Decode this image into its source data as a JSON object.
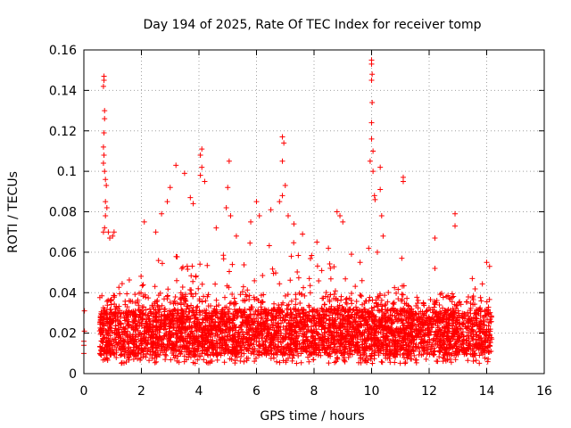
{
  "chart_data": {
    "type": "scatter",
    "title": "Day 194 of 2025, Rate Of TEC Index for receiver tomp",
    "xlabel": "GPS time / hours",
    "ylabel": "ROTI / TECUs",
    "xlim": [
      0,
      16
    ],
    "ylim": [
      0,
      0.16
    ],
    "x_ticks": [
      "0",
      "2",
      "4",
      "6",
      "8",
      "10",
      "12",
      "14",
      "16"
    ],
    "y_ticks": [
      "0",
      "0.02",
      "0.04",
      "0.06",
      "0.08",
      "0.1",
      "0.12",
      "0.14",
      "0.16"
    ],
    "grid": true,
    "marker": "+",
    "marker_color": "#ff0000",
    "series": [
      {
        "name": "ROTI",
        "approximate_band": {
          "x_range": [
            0.55,
            14.2
          ],
          "typical_range": [
            0.005,
            0.04
          ],
          "upper_envelope": [
            [
              0.7,
              0.045
            ],
            [
              2,
              0.05
            ],
            [
              3,
              0.06
            ],
            [
              4,
              0.06
            ],
            [
              5,
              0.065
            ],
            [
              6,
              0.065
            ],
            [
              7,
              0.07
            ],
            [
              8,
              0.06
            ],
            [
              9,
              0.05
            ],
            [
              10,
              0.045
            ],
            [
              11,
              0.045
            ],
            [
              12,
              0.04
            ],
            [
              13,
              0.04
            ],
            [
              14,
              0.05
            ]
          ]
        },
        "points": [
          [
            0.0,
            0.014
          ],
          [
            0.0,
            0.016
          ],
          [
            0.0,
            0.01
          ],
          [
            0.02,
            0.021
          ],
          [
            0.02,
            0.031
          ],
          [
            0.7,
            0.147
          ],
          [
            0.7,
            0.145
          ],
          [
            0.68,
            0.142
          ],
          [
            0.72,
            0.13
          ],
          [
            0.72,
            0.126
          ],
          [
            0.7,
            0.119
          ],
          [
            0.68,
            0.112
          ],
          [
            0.7,
            0.108
          ],
          [
            0.68,
            0.104
          ],
          [
            0.72,
            0.1
          ],
          [
            0.75,
            0.096
          ],
          [
            0.78,
            0.093
          ],
          [
            0.75,
            0.085
          ],
          [
            0.8,
            0.082
          ],
          [
            0.75,
            0.078
          ],
          [
            0.72,
            0.072
          ],
          [
            0.68,
            0.07
          ],
          [
            0.85,
            0.07
          ],
          [
            0.9,
            0.067
          ],
          [
            1.0,
            0.068
          ],
          [
            1.05,
            0.07
          ],
          [
            3.2,
            0.103
          ],
          [
            3.0,
            0.092
          ],
          [
            3.5,
            0.099
          ],
          [
            2.9,
            0.085
          ],
          [
            4.1,
            0.111
          ],
          [
            4.05,
            0.108
          ],
          [
            4.1,
            0.102
          ],
          [
            4.05,
            0.098
          ],
          [
            4.2,
            0.095
          ],
          [
            5.05,
            0.105
          ],
          [
            5.0,
            0.092
          ],
          [
            4.95,
            0.082
          ],
          [
            5.1,
            0.078
          ],
          [
            6.9,
            0.117
          ],
          [
            6.95,
            0.114
          ],
          [
            6.9,
            0.105
          ],
          [
            7.0,
            0.093
          ],
          [
            6.9,
            0.088
          ],
          [
            6.8,
            0.085
          ],
          [
            7.1,
            0.078
          ],
          [
            6.0,
            0.085
          ],
          [
            6.1,
            0.078
          ],
          [
            8.8,
            0.08
          ],
          [
            8.9,
            0.078
          ],
          [
            9.0,
            0.075
          ],
          [
            10.0,
            0.155
          ],
          [
            10.0,
            0.153
          ],
          [
            10.02,
            0.148
          ],
          [
            10.0,
            0.145
          ],
          [
            10.02,
            0.134
          ],
          [
            10.0,
            0.124
          ],
          [
            10.0,
            0.116
          ],
          [
            10.05,
            0.11
          ],
          [
            9.95,
            0.105
          ],
          [
            10.05,
            0.1
          ],
          [
            10.1,
            0.088
          ],
          [
            10.12,
            0.086
          ],
          [
            10.3,
            0.102
          ],
          [
            10.3,
            0.091
          ],
          [
            10.35,
            0.078
          ],
          [
            10.4,
            0.068
          ],
          [
            10.2,
            0.06
          ],
          [
            9.9,
            0.062
          ],
          [
            11.1,
            0.097
          ],
          [
            11.1,
            0.095
          ],
          [
            11.05,
            0.057
          ],
          [
            12.2,
            0.067
          ],
          [
            12.9,
            0.079
          ],
          [
            12.9,
            0.073
          ],
          [
            12.2,
            0.052
          ],
          [
            14.0,
            0.055
          ],
          [
            14.1,
            0.053
          ],
          [
            13.5,
            0.047
          ],
          [
            2.1,
            0.075
          ],
          [
            2.5,
            0.07
          ],
          [
            2.7,
            0.079
          ],
          [
            3.7,
            0.087
          ],
          [
            3.8,
            0.084
          ],
          [
            4.6,
            0.072
          ],
          [
            5.3,
            0.068
          ],
          [
            5.8,
            0.075
          ],
          [
            6.5,
            0.081
          ],
          [
            7.3,
            0.074
          ],
          [
            7.6,
            0.069
          ],
          [
            8.1,
            0.065
          ],
          [
            8.5,
            0.062
          ],
          [
            9.3,
            0.059
          ],
          [
            9.6,
            0.055
          ]
        ]
      }
    ]
  }
}
